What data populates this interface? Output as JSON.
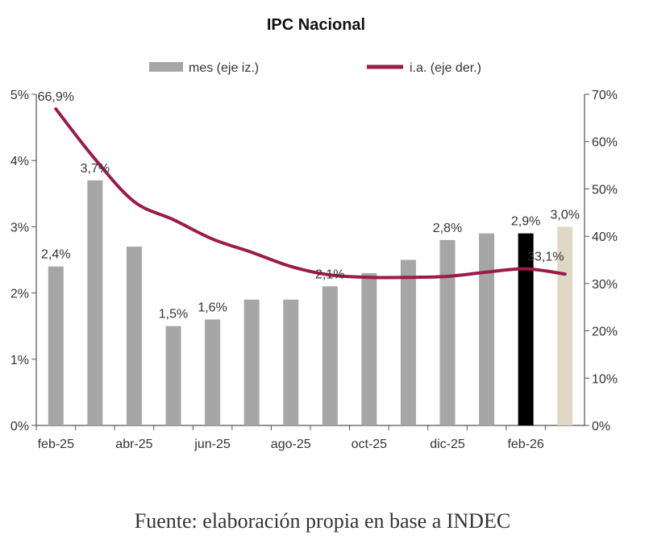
{
  "chart_data": {
    "type": "bar",
    "title": "IPC Nacional",
    "categories": [
      "feb-25",
      "mar-25",
      "abr-25",
      "may-25",
      "jun-25",
      "jul-25",
      "ago-25",
      "sep-25",
      "oct-25",
      "nov-25",
      "dic-25",
      "ene-26",
      "feb-26",
      "mar-26"
    ],
    "x_tick_labels": [
      "feb-25",
      "abr-25",
      "jun-25",
      "ago-25",
      "oct-25",
      "dic-25",
      "feb-26"
    ],
    "legend": {
      "position": "top",
      "items": [
        "mes (eje iz.)",
        "i.a. (eje der.)"
      ]
    },
    "series": [
      {
        "name": "mes (eje iz.)",
        "type": "bar",
        "axis": "left",
        "values": [
          2.4,
          3.7,
          2.7,
          1.5,
          1.6,
          1.9,
          1.9,
          2.1,
          2.3,
          2.5,
          2.8,
          2.9,
          2.9,
          3.0
        ],
        "color": "#a6a6a6",
        "highlight_colors": {
          "12": "#000000",
          "13": "#ddd9c4"
        }
      },
      {
        "name": "i.a. (eje der.)",
        "type": "line",
        "axis": "right",
        "values": [
          66.9,
          56.3,
          47.3,
          43.5,
          39.4,
          36.6,
          33.6,
          31.8,
          31.3,
          31.3,
          31.5,
          32.4,
          33.1,
          32.0
        ],
        "color": "#9b1b4b"
      }
    ],
    "data_labels": [
      {
        "text": "66,9%",
        "series": 1,
        "index": 0
      },
      {
        "text": "2,4%",
        "series": 0,
        "index": 0
      },
      {
        "text": "3,7%",
        "series": 0,
        "index": 1
      },
      {
        "text": "1,5%",
        "series": 0,
        "index": 3
      },
      {
        "text": "1,6%",
        "series": 0,
        "index": 4
      },
      {
        "text": "2,1%",
        "series": 0,
        "index": 7
      },
      {
        "text": "2,8%",
        "series": 0,
        "index": 10
      },
      {
        "text": "2,9%",
        "series": 0,
        "index": 12
      },
      {
        "text": "3,0%",
        "series": 0,
        "index": 13
      },
      {
        "text": "33,1%",
        "series": 1,
        "index": 12
      }
    ],
    "y_left": {
      "range": [
        0,
        5
      ],
      "ticks": [
        "0%",
        "1%",
        "2%",
        "3%",
        "4%",
        "5%"
      ]
    },
    "y_right": {
      "range": [
        0,
        70
      ],
      "ticks": [
        "0%",
        "10%",
        "20%",
        "30%",
        "40%",
        "50%",
        "60%",
        "70%"
      ]
    },
    "grid": false
  },
  "source_note": "Fuente: elaboración propia en base a INDEC"
}
